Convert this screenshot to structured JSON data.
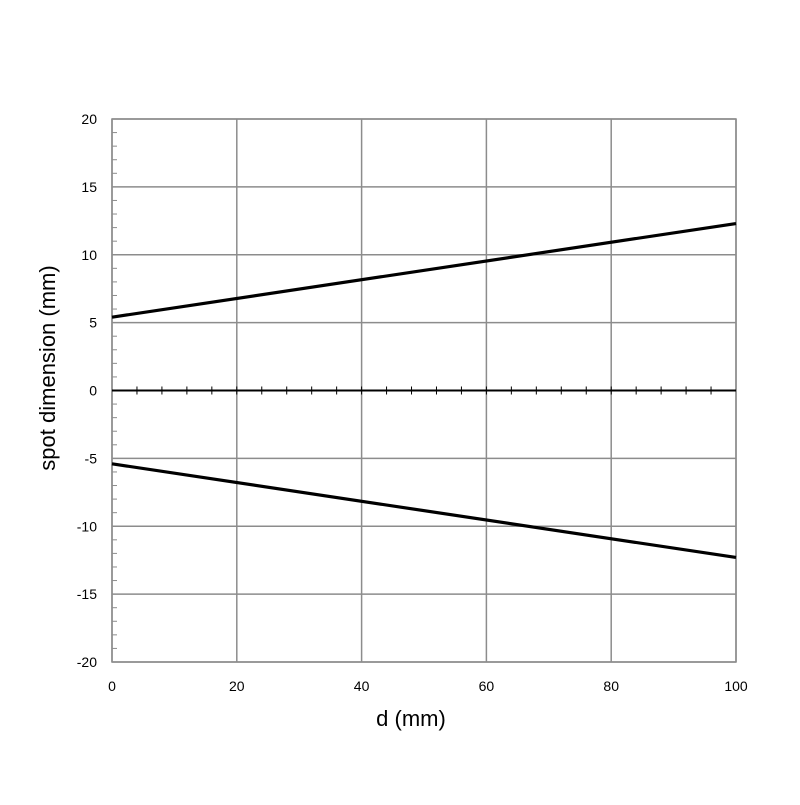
{
  "chart_data": {
    "type": "line",
    "title": "",
    "xlabel": "d (mm)",
    "ylabel": "spot dimension (mm)",
    "xlim": [
      0,
      100
    ],
    "ylim": [
      -20,
      20
    ],
    "xticks": [
      0,
      20,
      40,
      60,
      80,
      100
    ],
    "yticks": [
      -20,
      -15,
      -10,
      -5,
      0,
      5,
      10,
      15,
      20
    ],
    "xtick_labels": [
      "0",
      "20",
      "40",
      "60",
      "80",
      "100"
    ],
    "ytick_labels": [
      "-20",
      "-15",
      "-10",
      "-5",
      "0",
      "5",
      "10",
      "15",
      "20"
    ],
    "x_minor_step": 4,
    "y_minor_step": 1,
    "grid": true,
    "legend": "none",
    "colors": {
      "line": "#000000",
      "grid": "#8c8c8c",
      "zero_axis": "#000000"
    },
    "series": [
      {
        "x": [
          0,
          100
        ],
        "y": [
          5.4,
          12.3
        ]
      },
      {
        "x": [
          0,
          100
        ],
        "y": [
          -5.4,
          -12.3
        ]
      }
    ]
  }
}
